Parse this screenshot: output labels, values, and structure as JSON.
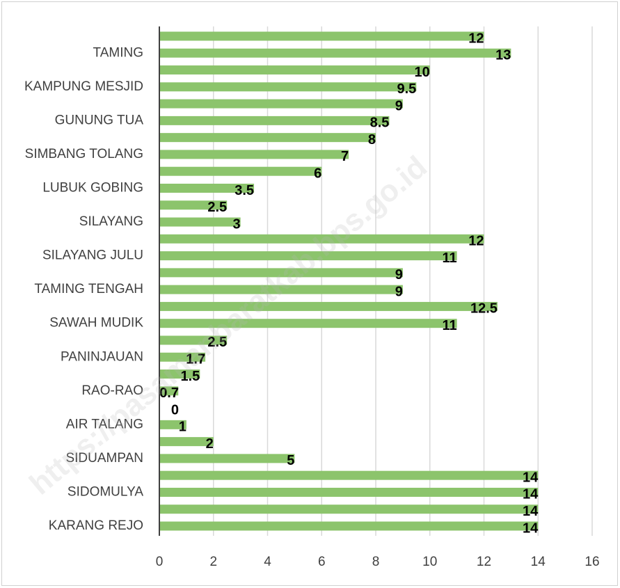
{
  "chart_data": {
    "type": "bar",
    "orientation": "horizontal",
    "categories": [
      "TAMING",
      "KAMPUNG MESJID",
      "GUNUNG TUA",
      "SIMBANG TOLANG",
      "LUBUK GOBING",
      "SILAYANG",
      "SILAYANG JULU",
      "TAMING TENGAH",
      "SAWAH MUDIK",
      "PANINJAUAN",
      "RAO-RAO",
      "AIR TALANG",
      "SIDUAMPAN",
      "SIDOMULYA",
      "KARANG REJO"
    ],
    "series": [
      {
        "color": "#8cc46c",
        "values": [
          12,
          10,
          9,
          8,
          6,
          2.5,
          12,
          9,
          12.5,
          2.5,
          1.5,
          0,
          2,
          14,
          14
        ]
      },
      {
        "color": "#8cc46c",
        "values": [
          13,
          9.5,
          8.5,
          7,
          3.5,
          3,
          11,
          9,
          11,
          1.7,
          0.7,
          1,
          5,
          14,
          14
        ]
      }
    ],
    "xlim": [
      0,
      16
    ],
    "xticks": [
      0,
      2,
      4,
      6,
      8,
      10,
      12,
      14,
      16
    ],
    "grid": true,
    "watermark": "https://pasamanbaratkab.bps.go.id"
  }
}
